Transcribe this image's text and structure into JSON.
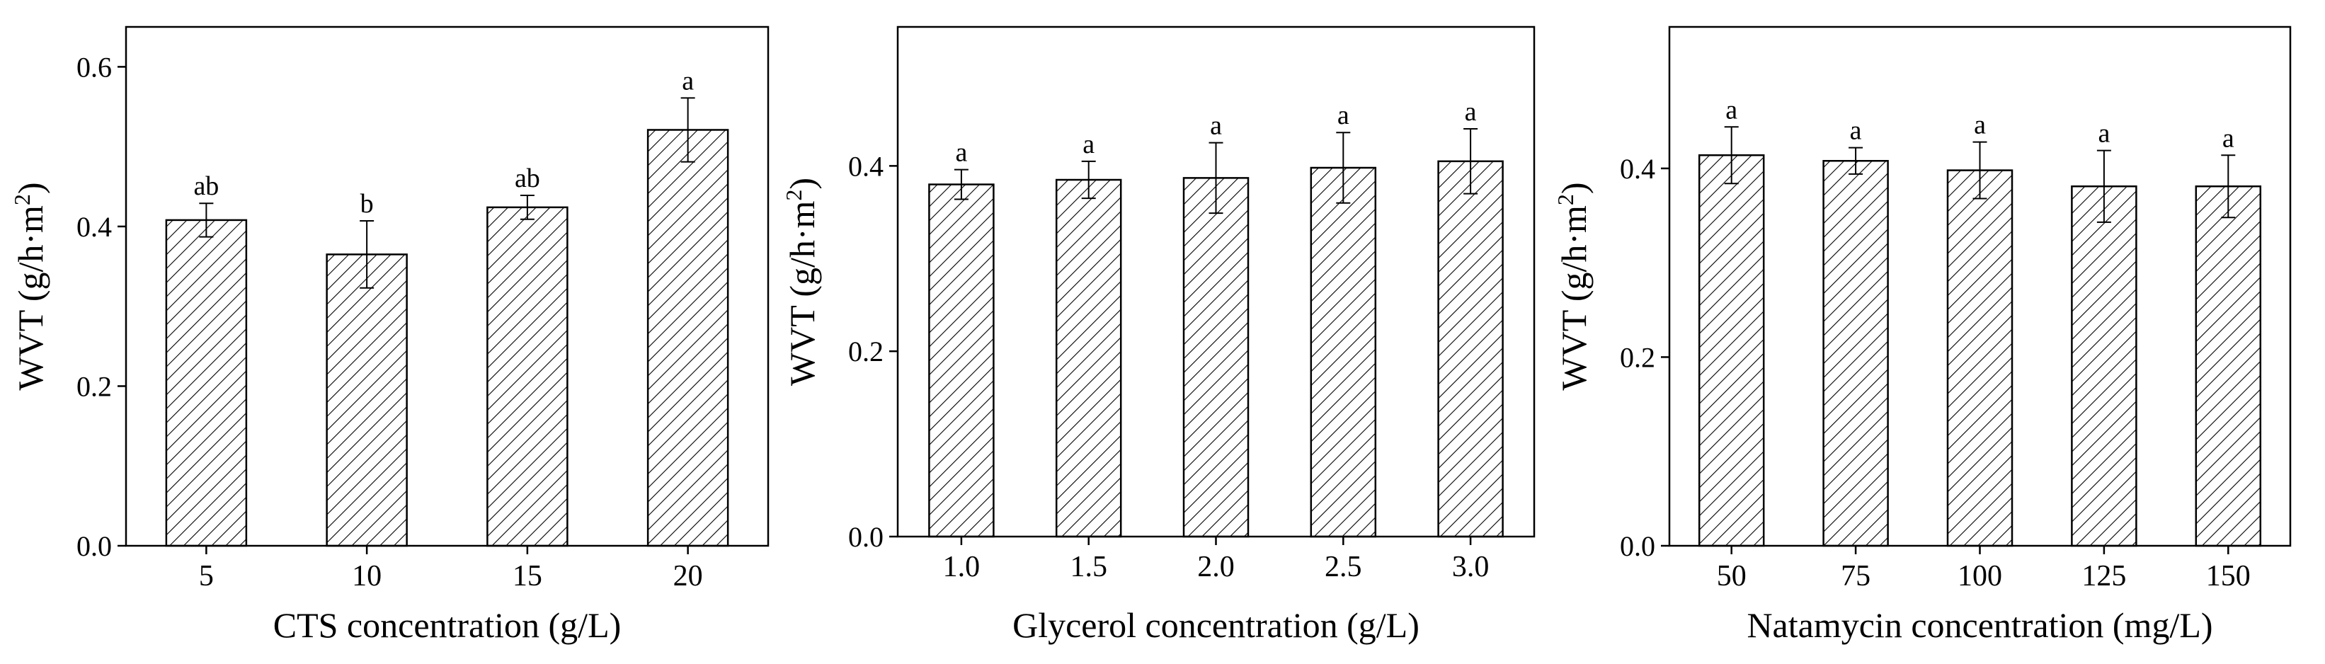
{
  "chart_data": [
    {
      "type": "bar",
      "categories": [
        "5",
        "10",
        "15",
        "20"
      ],
      "values": [
        0.408,
        0.365,
        0.424,
        0.521
      ],
      "errors": [
        0.021,
        0.042,
        0.015,
        0.04
      ],
      "letters": [
        "ab",
        "b",
        "ab",
        "a"
      ],
      "xlabel": "CTS concentration (g/L)",
      "ylabel_main": "WVT (g/h·m",
      "ylabel_sup": "2",
      "ylabel_close": ")",
      "ylim": [
        0,
        0.65
      ],
      "yticks": [
        0.0,
        0.2,
        0.4,
        0.6
      ],
      "ytick_labels": [
        "0.0",
        "0.2",
        "0.4",
        "0.6"
      ]
    },
    {
      "type": "bar",
      "categories": [
        "1.0",
        "1.5",
        "2.0",
        "2.5",
        "3.0"
      ],
      "values": [
        0.38,
        0.385,
        0.387,
        0.398,
        0.405
      ],
      "errors": [
        0.016,
        0.02,
        0.038,
        0.038,
        0.035
      ],
      "letters": [
        "a",
        "a",
        "a",
        "a",
        "a"
      ],
      "xlabel": "Glycerol concentration (g/L)",
      "ylabel_main": "WVT (g/h·m",
      "ylabel_sup": "2",
      "ylabel_close": ")",
      "ylim": [
        0,
        0.55
      ],
      "yticks": [
        0.0,
        0.2,
        0.4
      ],
      "ytick_labels": [
        "0.0",
        "0.2",
        "0.4"
      ]
    },
    {
      "type": "bar",
      "categories": [
        "50",
        "75",
        "100",
        "125",
        "150"
      ],
      "values": [
        0.414,
        0.408,
        0.398,
        0.381,
        0.381
      ],
      "errors": [
        0.03,
        0.014,
        0.03,
        0.038,
        0.033
      ],
      "letters": [
        "a",
        "a",
        "a",
        "a",
        "a"
      ],
      "xlabel": "Natamycin concentration (mg/L)",
      "ylabel_main": "WVT (g/h·m",
      "ylabel_sup": "2",
      "ylabel_close": ")",
      "ylim": [
        0,
        0.55
      ],
      "yticks": [
        0.0,
        0.2,
        0.4
      ],
      "ytick_labels": [
        "0.0",
        "0.2",
        "0.4"
      ]
    }
  ]
}
